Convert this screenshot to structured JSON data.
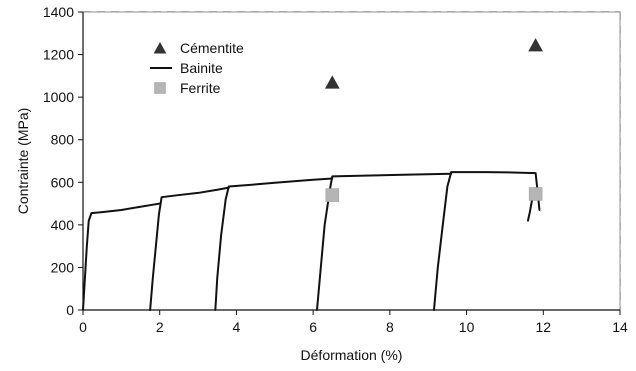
{
  "chart_data": {
    "type": "scatter",
    "title": "",
    "xlabel": "Déformation (%)",
    "ylabel": "Contrainte (MPa)",
    "xlim": [
      0,
      14
    ],
    "ylim": [
      0,
      1400
    ],
    "xticks": [
      0,
      2,
      4,
      6,
      8,
      10,
      12,
      14
    ],
    "yticks": [
      0,
      200,
      400,
      600,
      800,
      1000,
      1200,
      1400
    ],
    "grid": "dashed",
    "legend_position": "top-left",
    "series": [
      {
        "name": "Cémentite",
        "kind": "scatter",
        "marker": "triangle",
        "color": "#333333",
        "points": [
          [
            6.5,
            1070
          ],
          [
            11.8,
            1245
          ]
        ]
      },
      {
        "name": "Bainite",
        "kind": "line",
        "color": "#111111",
        "segments": [
          [
            [
              0.0,
              0
            ],
            [
              0.05,
              150
            ],
            [
              0.1,
              300
            ],
            [
              0.15,
              420
            ],
            [
              0.22,
              455
            ],
            [
              0.5,
              460
            ],
            [
              1.0,
              470
            ],
            [
              1.5,
              485
            ],
            [
              2.0,
              500
            ]
          ],
          [
            [
              1.75,
              0
            ],
            [
              1.82,
              150
            ],
            [
              1.9,
              300
            ],
            [
              1.98,
              450
            ],
            [
              2.05,
              530
            ],
            [
              2.5,
              540
            ],
            [
              3.0,
              550
            ],
            [
              3.5,
              565
            ],
            [
              3.8,
              575
            ]
          ],
          [
            [
              3.45,
              0
            ],
            [
              3.5,
              150
            ],
            [
              3.6,
              350
            ],
            [
              3.72,
              520
            ],
            [
              3.8,
              580
            ],
            [
              4.5,
              590
            ],
            [
              5.0,
              598
            ],
            [
              5.5,
              605
            ],
            [
              6.0,
              612
            ],
            [
              6.5,
              618
            ]
          ],
          [
            [
              6.1,
              0
            ],
            [
              6.2,
              200
            ],
            [
              6.3,
              400
            ],
            [
              6.45,
              580
            ],
            [
              6.5,
              628
            ],
            [
              7.5,
              632
            ],
            [
              8.5,
              636
            ],
            [
              9.6,
              640
            ]
          ],
          [
            [
              9.15,
              0
            ],
            [
              9.25,
              200
            ],
            [
              9.38,
              400
            ],
            [
              9.5,
              580
            ],
            [
              9.6,
              648
            ],
            [
              10.5,
              648
            ],
            [
              11.2,
              646
            ],
            [
              11.8,
              643
            ],
            [
              11.85,
              560
            ],
            [
              11.9,
              470
            ]
          ],
          [
            [
              11.6,
              420
            ],
            [
              11.65,
              460
            ],
            [
              11.7,
              510
            ],
            [
              11.75,
              550
            ]
          ]
        ]
      },
      {
        "name": "Ferrite",
        "kind": "scatter",
        "marker": "square",
        "color": "#b5b5b5",
        "points": [
          [
            6.5,
            540
          ],
          [
            11.8,
            545
          ]
        ]
      }
    ]
  }
}
